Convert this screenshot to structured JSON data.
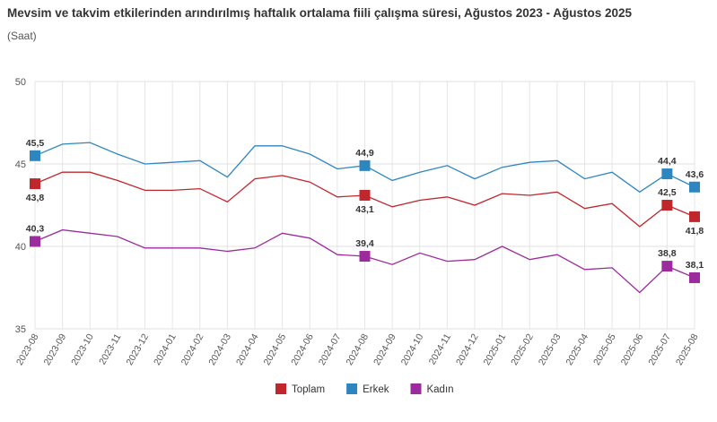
{
  "chart_data": {
    "type": "line",
    "title": "Mevsim ve takvim etkilerinden arındırılmış haftalık ortalama fiili çalışma süresi, Ağustos 2023 - Ağustos 2025",
    "subtitle": "(Saat)",
    "xlabel": "",
    "ylabel": "",
    "ylim": [
      35,
      50
    ],
    "yticks": [
      35,
      40,
      45,
      50
    ],
    "grid": true,
    "legend_position": "bottom",
    "categories": [
      "2023-08",
      "2023-09",
      "2023-10",
      "2023-11",
      "2023-12",
      "2024-01",
      "2024-02",
      "2024-03",
      "2024-04",
      "2024-05",
      "2024-06",
      "2024-07",
      "2024-08",
      "2024-09",
      "2024-10",
      "2024-11",
      "2024-12",
      "2025-01",
      "2025-02",
      "2025-03",
      "2025-04",
      "2025-05",
      "2025-06",
      "2025-07",
      "2025-08"
    ],
    "series": [
      {
        "name": "Toplam",
        "color": "#c0272d",
        "values": [
          43.8,
          44.5,
          44.5,
          44.0,
          43.4,
          43.4,
          43.5,
          42.7,
          44.1,
          44.3,
          43.9,
          43.0,
          43.1,
          42.4,
          42.8,
          43.0,
          42.5,
          43.2,
          43.1,
          43.3,
          42.3,
          42.6,
          41.2,
          42.5,
          41.8
        ],
        "labels": [
          {
            "index": 0,
            "text": "43,8",
            "pos": "below"
          },
          {
            "index": 12,
            "text": "43,1",
            "pos": "below"
          },
          {
            "index": 23,
            "text": "42,5",
            "pos": "above"
          },
          {
            "index": 24,
            "text": "41,8",
            "pos": "below"
          }
        ]
      },
      {
        "name": "Erkek",
        "color": "#2e86c1",
        "values": [
          45.5,
          46.2,
          46.3,
          45.6,
          45.0,
          45.1,
          45.2,
          44.2,
          46.1,
          46.1,
          45.6,
          44.7,
          44.9,
          44.0,
          44.5,
          44.9,
          44.1,
          44.8,
          45.1,
          45.2,
          44.1,
          44.5,
          43.3,
          44.4,
          43.6
        ],
        "labels": [
          {
            "index": 0,
            "text": "45,5",
            "pos": "above"
          },
          {
            "index": 12,
            "text": "44,9",
            "pos": "above"
          },
          {
            "index": 23,
            "text": "44,4",
            "pos": "above"
          },
          {
            "index": 24,
            "text": "43,6",
            "pos": "above"
          }
        ]
      },
      {
        "name": "Kadın",
        "color": "#9c2b9e",
        "values": [
          40.3,
          41.0,
          40.8,
          40.6,
          39.9,
          39.9,
          39.9,
          39.7,
          39.9,
          40.8,
          40.5,
          39.5,
          39.4,
          38.9,
          39.6,
          39.1,
          39.2,
          40.0,
          39.2,
          39.5,
          38.6,
          38.7,
          37.2,
          38.8,
          38.1
        ],
        "labels": [
          {
            "index": 0,
            "text": "40,3",
            "pos": "above"
          },
          {
            "index": 12,
            "text": "39,4",
            "pos": "above"
          },
          {
            "index": 23,
            "text": "38,8",
            "pos": "above"
          },
          {
            "index": 24,
            "text": "38,1",
            "pos": "above"
          }
        ]
      }
    ],
    "markers_at": [
      0,
      12,
      23,
      24
    ]
  }
}
